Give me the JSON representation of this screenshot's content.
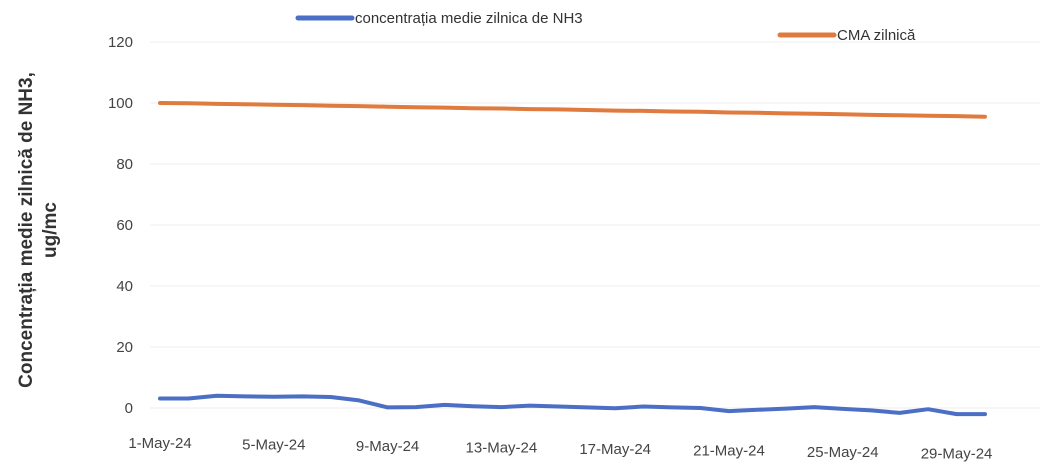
{
  "chart_data": {
    "type": "line",
    "title": "",
    "ylabel_lines": [
      "Concentrația medie zilnică de NH3,",
      "ug/mc"
    ],
    "ylim": [
      0,
      120
    ],
    "yticks": [
      0,
      20,
      40,
      60,
      80,
      100,
      120
    ],
    "x": [
      "1-May-24",
      "2-May-24",
      "3-May-24",
      "4-May-24",
      "5-May-24",
      "6-May-24",
      "7-May-24",
      "8-May-24",
      "9-May-24",
      "10-May-24",
      "11-May-24",
      "12-May-24",
      "13-May-24",
      "14-May-24",
      "15-May-24",
      "16-May-24",
      "17-May-24",
      "18-May-24",
      "19-May-24",
      "20-May-24",
      "21-May-24",
      "22-May-24",
      "23-May-24",
      "24-May-24",
      "25-May-24",
      "26-May-24",
      "27-May-24",
      "28-May-24",
      "29-May-24",
      "30-May-24"
    ],
    "xtick_labels": [
      "1-May-24",
      "5-May-24",
      "9-May-24",
      "13-May-24",
      "17-May-24",
      "21-May-24",
      "25-May-24",
      "29-May-24"
    ],
    "xtick_indices": [
      0,
      4,
      8,
      12,
      16,
      20,
      24,
      28
    ],
    "grid": true,
    "legend_position": "top",
    "series": [
      {
        "name": "concentrația medie zilnica de NH3",
        "color": "#4a6fc4",
        "values": [
          3.1,
          3.1,
          4.0,
          3.8,
          3.7,
          3.8,
          3.6,
          2.5,
          0.2,
          0.3,
          1.0,
          0.6,
          0.3,
          0.8,
          0.5,
          0.2,
          -0.1,
          0.5,
          0.2,
          0.0,
          -1.0,
          -0.6,
          -0.2,
          0.3,
          -0.3,
          -0.8,
          -1.6,
          -0.4,
          -2.0,
          -2.0
        ]
      },
      {
        "name": "CMA zilnică",
        "color": "#e07b3f",
        "values": [
          100,
          99.9,
          99.7,
          99.6,
          99.4,
          99.3,
          99.1,
          99.0,
          98.8,
          98.6,
          98.5,
          98.3,
          98.2,
          98.0,
          97.9,
          97.7,
          97.5,
          97.4,
          97.2,
          97.1,
          96.9,
          96.8,
          96.6,
          96.5,
          96.3,
          96.1,
          96.0,
          95.8,
          95.7,
          95.5
        ]
      }
    ]
  }
}
